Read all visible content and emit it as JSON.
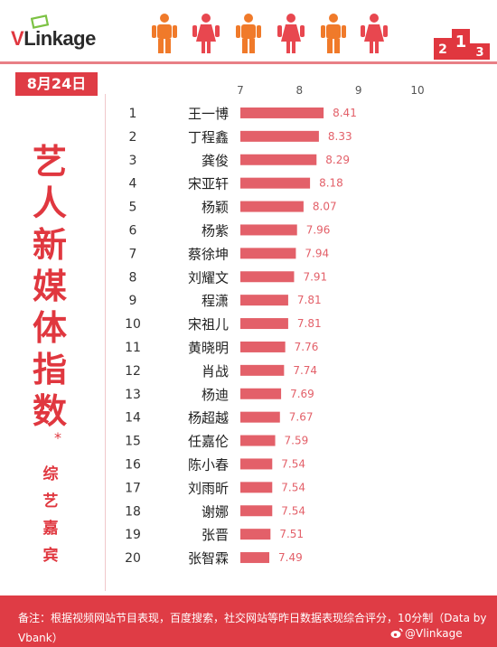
{
  "header": {
    "logo_first": "V",
    "logo_rest": "Linkage",
    "date": "8月24日"
  },
  "title": {
    "chars": [
      "艺",
      "人",
      "新",
      "媒",
      "体",
      "指",
      "数"
    ],
    "star": "*",
    "sub_chars": [
      "综",
      "艺",
      "嘉",
      "宾"
    ]
  },
  "colors": {
    "accent": "#df3c45",
    "bar": "#e36069",
    "label": "#e0373f",
    "figure_orange": "#f07a2a",
    "figure_pink": "#e8474f"
  },
  "chart_data": {
    "type": "bar",
    "orientation": "horizontal",
    "title": "",
    "xlim": [
      7,
      10
    ],
    "xticks": [
      7,
      8,
      9,
      10
    ],
    "ranks": [
      1,
      2,
      3,
      4,
      5,
      6,
      7,
      8,
      9,
      10,
      11,
      12,
      13,
      14,
      15,
      16,
      17,
      18,
      19,
      20
    ],
    "categories": [
      "王一博",
      "丁程鑫",
      "龚俊",
      "宋亚轩",
      "杨颖",
      "杨紫",
      "蔡徐坤",
      "刘耀文",
      "程潇",
      "宋祖儿",
      "黄晓明",
      "肖战",
      "杨迪",
      "杨超越",
      "任嘉伦",
      "陈小春",
      "刘雨昕",
      "谢娜",
      "张晋",
      "张智霖"
    ],
    "values": [
      8.41,
      8.33,
      8.29,
      8.18,
      8.07,
      7.96,
      7.94,
      7.91,
      7.81,
      7.81,
      7.76,
      7.74,
      7.69,
      7.67,
      7.59,
      7.54,
      7.54,
      7.54,
      7.51,
      7.49
    ],
    "value_labels": [
      "8.41",
      "8.33",
      "8.29",
      "8.18",
      "8.07",
      "7.96",
      "7.94",
      "7.91",
      "7.81",
      "7.81",
      "7.76",
      "7.74",
      "7.69",
      "7.67",
      "7.59",
      "7.54",
      "7.54",
      "7.54",
      "7.51",
      "7.49"
    ],
    "grid": false
  },
  "footer": {
    "note": "备注：根据视频网站节目表现，百度搜索，社交网站等昨日数据表现综合评分，10分制（Data by Vbank）",
    "handle": "@Vlinkage"
  }
}
